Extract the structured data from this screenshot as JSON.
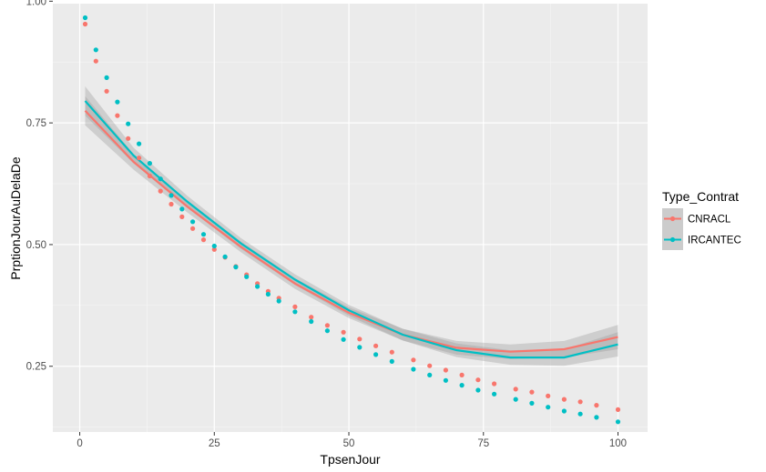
{
  "chart_data": {
    "type": "scatter",
    "xlabel": "TpsenJour",
    "ylabel": "PrptionJourAuDelaDe",
    "xlim": [
      -5,
      105.5
    ],
    "ylim": [
      0.115,
      0.995
    ],
    "x_ticks": [
      0,
      25,
      50,
      75,
      100
    ],
    "x_tick_labels": [
      "0",
      "25",
      "50",
      "75",
      "100"
    ],
    "y_ticks": [
      0.25,
      0.5,
      0.75,
      1.0
    ],
    "y_tick_labels": [
      "0.25",
      "0.50",
      "0.75",
      "1.00"
    ],
    "grid": true,
    "legend": {
      "title": "Type_Contrat",
      "placement": "right"
    },
    "series": [
      {
        "name": "CNRACL",
        "color": "#F8766D",
        "x": [
          1,
          3,
          5,
          7,
          9,
          11,
          13,
          15,
          17,
          19,
          21,
          23,
          25,
          27,
          29,
          31,
          33,
          35,
          37,
          40,
          43,
          46,
          49,
          52,
          55,
          58,
          62,
          65,
          68,
          71,
          74,
          77,
          81,
          84,
          87,
          90,
          93,
          96,
          100
        ],
        "y": [
          0.953,
          0.877,
          0.815,
          0.765,
          0.718,
          0.678,
          0.641,
          0.61,
          0.583,
          0.557,
          0.533,
          0.51,
          0.49,
          0.474,
          0.455,
          0.438,
          0.42,
          0.404,
          0.39,
          0.372,
          0.351,
          0.334,
          0.32,
          0.306,
          0.292,
          0.279,
          0.263,
          0.251,
          0.242,
          0.232,
          0.222,
          0.214,
          0.203,
          0.197,
          0.189,
          0.182,
          0.177,
          0.17,
          0.161
        ]
      },
      {
        "name": "IRCANTEC",
        "color": "#00BFC4",
        "x": [
          1,
          3,
          5,
          7,
          9,
          11,
          13,
          15,
          17,
          19,
          21,
          23,
          25,
          27,
          29,
          31,
          33,
          35,
          37,
          40,
          43,
          46,
          49,
          52,
          55,
          58,
          62,
          65,
          68,
          71,
          74,
          77,
          81,
          84,
          87,
          90,
          93,
          96,
          100
        ],
        "y": [
          0.966,
          0.9,
          0.843,
          0.793,
          0.748,
          0.707,
          0.667,
          0.635,
          0.601,
          0.573,
          0.547,
          0.521,
          0.497,
          0.475,
          0.454,
          0.434,
          0.414,
          0.398,
          0.384,
          0.362,
          0.342,
          0.323,
          0.305,
          0.289,
          0.274,
          0.26,
          0.244,
          0.232,
          0.221,
          0.211,
          0.201,
          0.193,
          0.182,
          0.174,
          0.166,
          0.158,
          0.152,
          0.145,
          0.136
        ]
      }
    ],
    "smooth_fits": [
      {
        "name": "CNRACL",
        "color": "#F8766D",
        "x": [
          1,
          10,
          20,
          30,
          40,
          50,
          60,
          70,
          80,
          90,
          100
        ],
        "y": [
          0.775,
          0.67,
          0.578,
          0.495,
          0.42,
          0.36,
          0.315,
          0.288,
          0.28,
          0.285,
          0.31
        ],
        "band": [
          0.03,
          0.016,
          0.012,
          0.011,
          0.011,
          0.011,
          0.012,
          0.014,
          0.015,
          0.017,
          0.025
        ]
      },
      {
        "name": "IRCANTEC",
        "color": "#00BFC4",
        "x": [
          1,
          10,
          20,
          30,
          40,
          50,
          60,
          70,
          80,
          90,
          100
        ],
        "y": [
          0.795,
          0.683,
          0.588,
          0.502,
          0.428,
          0.365,
          0.315,
          0.283,
          0.268,
          0.268,
          0.295
        ],
        "band": [
          0.03,
          0.016,
          0.012,
          0.011,
          0.011,
          0.011,
          0.012,
          0.014,
          0.015,
          0.017,
          0.025
        ]
      }
    ]
  }
}
